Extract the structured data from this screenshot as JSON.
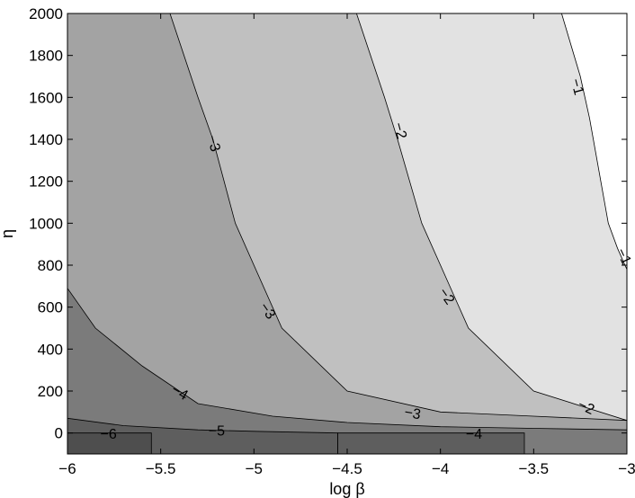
{
  "chart_data": {
    "type": "contour",
    "xlabel": "log β",
    "ylabel": "η",
    "xlim": [
      -6,
      -3
    ],
    "ylim": [
      -100,
      2000
    ],
    "x_ticks": [
      -6,
      -5.5,
      -5,
      -4.5,
      -4,
      -3.5,
      -3
    ],
    "x_tick_labels": [
      "−6",
      "−5.5",
      "−5",
      "−4.5",
      "−4",
      "−3.5",
      "−3"
    ],
    "y_ticks": [
      0,
      200,
      400,
      600,
      800,
      1000,
      1200,
      1400,
      1600,
      1800,
      2000
    ],
    "y_tick_labels": [
      "0",
      "200",
      "400",
      "600",
      "800",
      "1000",
      "1200",
      "1400",
      "1600",
      "1800",
      "2000"
    ],
    "grid": false,
    "fill_colors": {
      "below_-6": "#4e4e4e",
      "-6_to_-5": "#5e5e5e",
      "-5_to_-4": "#7b7b7b",
      "-4_to_-3": "#a3a3a3",
      "-3_to_-2": "#c0c0c0",
      "-2_to_-1": "#e2e2e2",
      "above_-1": "#ffffff"
    },
    "levels": [
      {
        "level": -6,
        "points": [
          [
            -6,
            0
          ],
          [
            -5.55,
            0
          ],
          [
            -5.55,
            -100
          ]
        ]
      },
      {
        "level": -5,
        "points": [
          [
            -6,
            70
          ],
          [
            -5.7,
            35
          ],
          [
            -5.3,
            15
          ],
          [
            -5.0,
            8
          ],
          [
            -4.55,
            0
          ],
          [
            -4.55,
            -100
          ]
        ]
      },
      {
        "level": -5,
        "points": [
          [
            -4.55,
            -100
          ],
          [
            -4.55,
            0
          ],
          [
            -3.55,
            0
          ],
          [
            -3.55,
            -100
          ]
        ]
      },
      {
        "level": -4,
        "points": [
          [
            -6,
            690
          ],
          [
            -5.85,
            500
          ],
          [
            -5.6,
            320
          ],
          [
            -5.3,
            140
          ],
          [
            -4.9,
            80
          ],
          [
            -4.5,
            50
          ],
          [
            -4.0,
            30
          ],
          [
            -3.5,
            22
          ],
          [
            -3.0,
            15
          ]
        ]
      },
      {
        "level": -3,
        "points": [
          [
            -5.45,
            2000
          ],
          [
            -5.3,
            1600
          ],
          [
            -5.22,
            1400
          ],
          [
            -5.1,
            1000
          ],
          [
            -5.0,
            800
          ],
          [
            -4.85,
            500
          ],
          [
            -4.5,
            200
          ],
          [
            -4.0,
            100
          ],
          [
            -3.5,
            80
          ],
          [
            -3.0,
            60
          ]
        ]
      },
      {
        "level": -2,
        "points": [
          [
            -4.45,
            2000
          ],
          [
            -4.3,
            1600
          ],
          [
            -4.23,
            1400
          ],
          [
            -4.1,
            1000
          ],
          [
            -4.0,
            800
          ],
          [
            -3.85,
            500
          ],
          [
            -3.5,
            200
          ],
          [
            -3.0,
            60
          ]
        ]
      },
      {
        "level": -1,
        "points": [
          [
            -3.35,
            2000
          ],
          [
            -3.25,
            1700
          ],
          [
            -3.2,
            1500
          ],
          [
            -3.1,
            1000
          ],
          [
            -3.05,
            880
          ],
          [
            -3.0,
            780
          ]
        ]
      }
    ],
    "annotations": [
      {
        "text": "−6",
        "x": -5.78,
        "y": -10,
        "rotation": 0
      },
      {
        "text": "−5",
        "x": -5.2,
        "y": 5,
        "rotation": 0
      },
      {
        "text": "−4",
        "x": -5.4,
        "y": 190,
        "rotation": 30
      },
      {
        "text": "−4",
        "x": -3.82,
        "y": -10,
        "rotation": 0
      },
      {
        "text": "−3",
        "x": -5.22,
        "y": 1380,
        "rotation": 75
      },
      {
        "text": "−3",
        "x": -4.93,
        "y": 580,
        "rotation": 55
      },
      {
        "text": "−3",
        "x": -4.15,
        "y": 90,
        "rotation": 10
      },
      {
        "text": "−2",
        "x": -4.22,
        "y": 1440,
        "rotation": 75
      },
      {
        "text": "−2",
        "x": -3.97,
        "y": 650,
        "rotation": 55
      },
      {
        "text": "−2",
        "x": -3.22,
        "y": 120,
        "rotation": 25
      },
      {
        "text": "−1",
        "x": -3.27,
        "y": 1650,
        "rotation": 75
      },
      {
        "text": "−1",
        "x": -3.02,
        "y": 840,
        "rotation": 65
      }
    ]
  }
}
